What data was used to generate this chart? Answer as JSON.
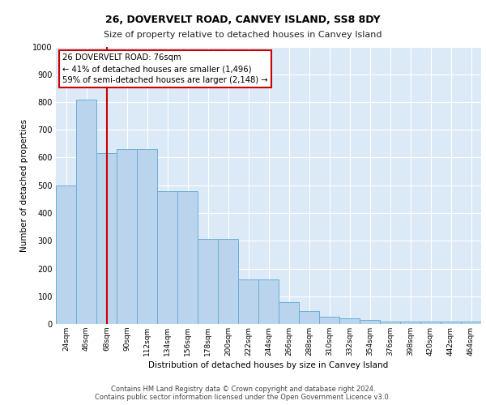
{
  "title1": "26, DOVERVELT ROAD, CANVEY ISLAND, SS8 8DY",
  "title2": "Size of property relative to detached houses in Canvey Island",
  "xlabel": "Distribution of detached houses by size in Canvey Island",
  "ylabel": "Number of detached properties",
  "footer1": "Contains HM Land Registry data © Crown copyright and database right 2024.",
  "footer2": "Contains public sector information licensed under the Open Government Licence v3.0.",
  "bar_values": [
    500,
    810,
    615,
    630,
    630,
    478,
    478,
    308,
    308,
    160,
    160,
    80,
    46,
    25,
    20,
    15,
    10,
    10,
    10,
    10,
    10
  ],
  "bin_labels": [
    "24sqm",
    "46sqm",
    "68sqm",
    "90sqm",
    "112sqm",
    "134sqm",
    "156sqm",
    "178sqm",
    "200sqm",
    "222sqm",
    "244sqm",
    "266sqm",
    "288sqm",
    "310sqm",
    "332sqm",
    "354sqm",
    "376sqm",
    "398sqm",
    "420sqm",
    "442sqm",
    "464sqm"
  ],
  "bar_color": "#bad4ed",
  "bar_edge_color": "#6aaed6",
  "vline_color": "#cc0000",
  "vline_x": 2.0,
  "annotation_text": "26 DOVERVELT ROAD: 76sqm\n← 41% of detached houses are smaller (1,496)\n59% of semi-detached houses are larger (2,148) →",
  "annotation_box_color": "white",
  "annotation_box_edge": "#cc0000",
  "ylim": [
    0,
    1000
  ],
  "yticks": [
    0,
    100,
    200,
    300,
    400,
    500,
    600,
    700,
    800,
    900,
    1000
  ],
  "plot_bg": "#dce9f7",
  "grid_color": "white"
}
